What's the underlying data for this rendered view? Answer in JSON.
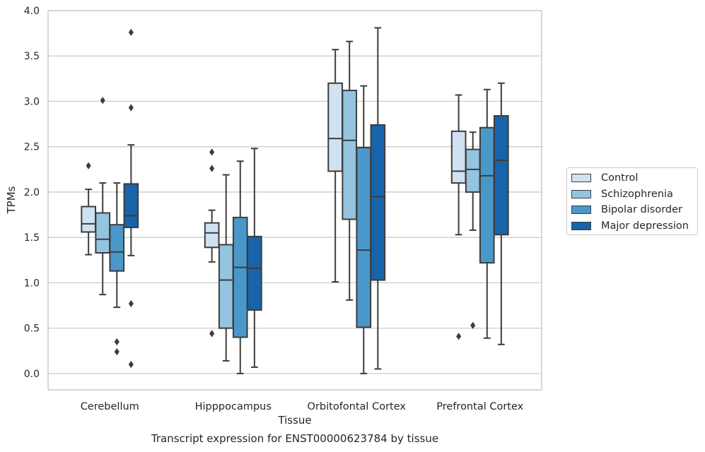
{
  "chart_data": {
    "type": "box",
    "title": "",
    "xlabel": "Tissue",
    "ylabel": "TPMs",
    "caption": "Transcript expression for ENST00000623784 by tissue",
    "categories": [
      "Cerebellum",
      "Hipppocampus",
      "Orbitofontal Cortex",
      "Prefrontal Cortex"
    ],
    "ylim": [
      -0.18,
      4.0
    ],
    "yticks": [
      "0.0",
      "0.5",
      "1.0",
      "1.5",
      "2.0",
      "2.5",
      "3.0",
      "3.5",
      "4.0"
    ],
    "grid": "horizontal",
    "legend_placement": "right-outside",
    "colors": {
      "Control": "#d0e1f2",
      "Schizophrenia": "#94c4df",
      "Bipolar disorder": "#4a98c9",
      "Major depression": "#1764ab",
      "line": "#3d3d3d",
      "grid": "#cccccc"
    },
    "series": [
      {
        "name": "Control",
        "boxes": [
          {
            "whisker_low": 1.31,
            "q1": 1.56,
            "median": 1.65,
            "q3": 1.84,
            "whisker_high": 2.03,
            "outliers": [
              2.29
            ]
          },
          {
            "whisker_low": 1.23,
            "q1": 1.39,
            "median": 1.55,
            "q3": 1.66,
            "whisker_high": 1.8,
            "outliers": [
              2.44,
              2.26,
              0.44
            ]
          },
          {
            "whisker_low": 1.01,
            "q1": 2.23,
            "median": 2.59,
            "q3": 3.2,
            "whisker_high": 3.57,
            "outliers": []
          },
          {
            "whisker_low": 1.53,
            "q1": 2.1,
            "median": 2.23,
            "q3": 2.67,
            "whisker_high": 3.07,
            "outliers": [
              0.41
            ]
          }
        ]
      },
      {
        "name": "Schizophrenia",
        "boxes": [
          {
            "whisker_low": 0.87,
            "q1": 1.33,
            "median": 1.48,
            "q3": 1.77,
            "whisker_high": 2.1,
            "outliers": [
              3.01
            ]
          },
          {
            "whisker_low": 0.14,
            "q1": 0.5,
            "median": 1.03,
            "q3": 1.42,
            "whisker_high": 2.19,
            "outliers": []
          },
          {
            "whisker_low": 0.81,
            "q1": 1.7,
            "median": 2.57,
            "q3": 3.12,
            "whisker_high": 3.66,
            "outliers": []
          },
          {
            "whisker_low": 1.58,
            "q1": 2.0,
            "median": 2.25,
            "q3": 2.47,
            "whisker_high": 2.66,
            "outliers": [
              0.53
            ]
          }
        ]
      },
      {
        "name": "Bipolar disorder",
        "boxes": [
          {
            "whisker_low": 0.73,
            "q1": 1.13,
            "median": 1.34,
            "q3": 1.64,
            "whisker_high": 2.1,
            "outliers": [
              0.35,
              0.24
            ]
          },
          {
            "whisker_low": 0.0,
            "q1": 0.4,
            "median": 1.17,
            "q3": 1.72,
            "whisker_high": 2.34,
            "outliers": []
          },
          {
            "whisker_low": 0.0,
            "q1": 0.51,
            "median": 1.36,
            "q3": 2.49,
            "whisker_high": 3.17,
            "outliers": []
          },
          {
            "whisker_low": 0.39,
            "q1": 1.22,
            "median": 2.18,
            "q3": 2.71,
            "whisker_high": 3.13,
            "outliers": []
          }
        ]
      },
      {
        "name": "Major depression",
        "boxes": [
          {
            "whisker_low": 1.3,
            "q1": 1.61,
            "median": 1.74,
            "q3": 2.09,
            "whisker_high": 2.52,
            "outliers": [
              3.76,
              2.93,
              0.77,
              0.1
            ]
          },
          {
            "whisker_low": 0.07,
            "q1": 0.7,
            "median": 1.16,
            "q3": 1.51,
            "whisker_high": 2.48,
            "outliers": []
          },
          {
            "whisker_low": 0.05,
            "q1": 1.03,
            "median": 1.95,
            "q3": 2.74,
            "whisker_high": 3.81,
            "outliers": []
          },
          {
            "whisker_low": 0.32,
            "q1": 1.53,
            "median": 2.35,
            "q3": 2.84,
            "whisker_high": 3.2,
            "outliers": []
          }
        ]
      }
    ]
  }
}
